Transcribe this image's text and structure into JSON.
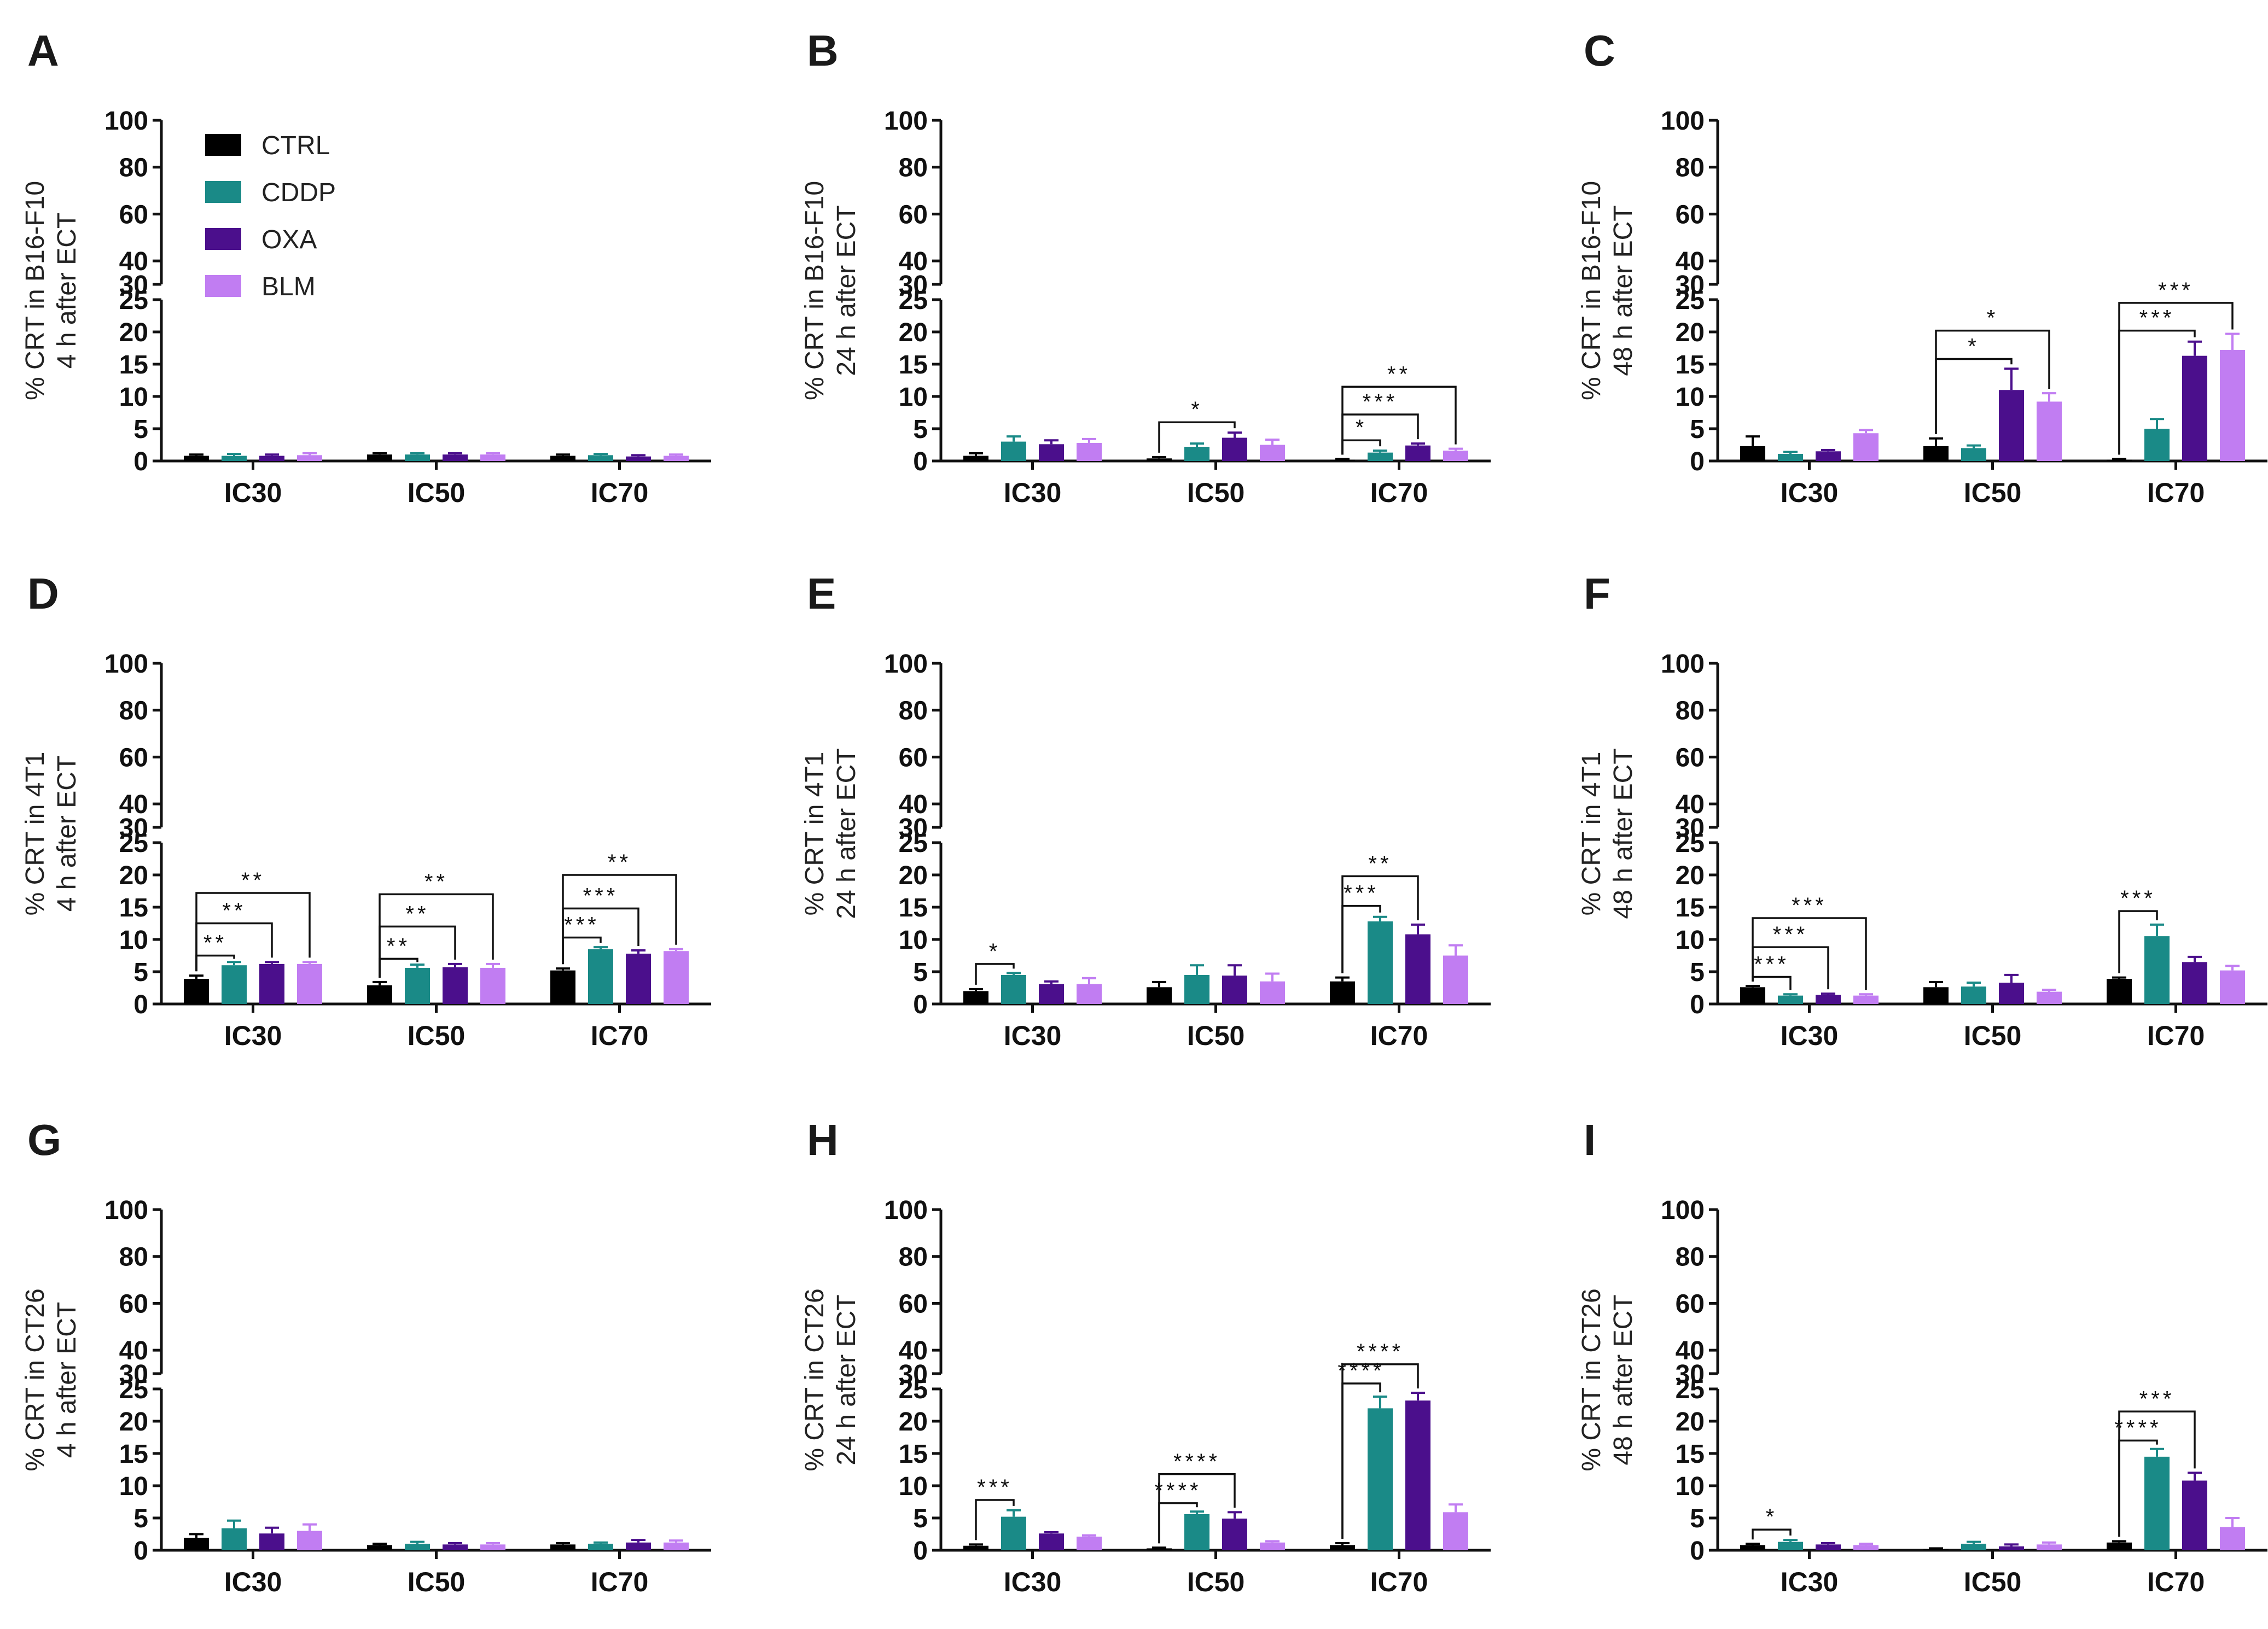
{
  "legend": [
    {
      "name": "CTRL",
      "color": "#000000"
    },
    {
      "name": "CDDP",
      "color": "#1a8a87"
    },
    {
      "name": "OXA",
      "color": "#4b0f8c"
    },
    {
      "name": "BLM",
      "color": "#c17df2"
    }
  ],
  "axis": {
    "upper_ticks": [
      "100",
      "80",
      "60",
      "40",
      "30"
    ],
    "lower_ticks": [
      "25",
      "20",
      "15",
      "10",
      "5",
      "0"
    ],
    "ylim_lower": [
      0,
      25
    ],
    "ylim_upper": [
      30,
      100
    ]
  },
  "chart_data": [
    {
      "panel": "A",
      "type": "bar",
      "ylabel": [
        "% CRT in B16-F10",
        "4 h after ECT"
      ],
      "categories": [
        "IC30",
        "IC50",
        "IC70"
      ],
      "series": [
        {
          "name": "CTRL",
          "values": [
            0.8,
            1.0,
            0.8
          ],
          "errors": [
            0.2,
            0.2,
            0.2
          ]
        },
        {
          "name": "CDDP",
          "values": [
            0.8,
            1.0,
            0.9
          ],
          "errors": [
            0.3,
            0.2,
            0.2
          ]
        },
        {
          "name": "OXA",
          "values": [
            0.8,
            1.0,
            0.7
          ],
          "errors": [
            0.2,
            0.2,
            0.2
          ]
        },
        {
          "name": "BLM",
          "values": [
            0.9,
            1.0,
            0.8
          ],
          "errors": [
            0.3,
            0.2,
            0.2
          ]
        }
      ],
      "annotations": [],
      "legend": true
    },
    {
      "panel": "B",
      "type": "bar",
      "ylabel": [
        "% CRT in B16-F10",
        "24 h after ECT"
      ],
      "categories": [
        "IC30",
        "IC50",
        "IC70"
      ],
      "series": [
        {
          "name": "CTRL",
          "values": [
            0.8,
            0.4,
            0.2
          ],
          "errors": [
            0.4,
            0.2,
            0.1
          ]
        },
        {
          "name": "CDDP",
          "values": [
            3.0,
            2.2,
            1.3
          ],
          "errors": [
            0.8,
            0.5,
            0.3
          ]
        },
        {
          "name": "OXA",
          "values": [
            2.6,
            3.6,
            2.4
          ],
          "errors": [
            0.6,
            0.8,
            0.3
          ]
        },
        {
          "name": "BLM",
          "values": [
            2.8,
            2.5,
            1.6
          ],
          "errors": [
            0.6,
            0.8,
            0.3
          ]
        }
      ],
      "annotations": [
        {
          "cat": 1,
          "from": 0,
          "to": 2,
          "y": 6.0,
          "text": "*"
        },
        {
          "cat": 2,
          "from": 0,
          "to": 1,
          "y": 3.2,
          "text": "*"
        },
        {
          "cat": 2,
          "from": 0,
          "to": 2,
          "y": 7.2,
          "text": "***"
        },
        {
          "cat": 2,
          "from": 0,
          "to": 3,
          "y": 11.5,
          "text": "**"
        }
      ]
    },
    {
      "panel": "C",
      "type": "bar",
      "ylabel": [
        "% CRT in B16-F10",
        "48 h after ECT"
      ],
      "categories": [
        "IC30",
        "IC50",
        "IC70"
      ],
      "series": [
        {
          "name": "CTRL",
          "values": [
            2.3,
            2.3,
            0.2
          ],
          "errors": [
            1.5,
            1.2,
            0.1
          ]
        },
        {
          "name": "CDDP",
          "values": [
            1.1,
            2.0,
            5.0
          ],
          "errors": [
            0.3,
            0.4,
            1.5
          ]
        },
        {
          "name": "OXA",
          "values": [
            1.5,
            11.0,
            16.3
          ],
          "errors": [
            0.2,
            3.3,
            2.2
          ]
        },
        {
          "name": "BLM",
          "values": [
            4.3,
            9.2,
            17.2
          ],
          "errors": [
            0.5,
            1.3,
            2.5
          ]
        }
      ],
      "annotations": [
        {
          "cat": 1,
          "from": 0,
          "to": 2,
          "y": 15.8,
          "text": "*"
        },
        {
          "cat": 1,
          "from": 0,
          "to": 3,
          "y": 20.2,
          "text": "*"
        },
        {
          "cat": 2,
          "from": 0,
          "to": 2,
          "y": 20.2,
          "text": "***"
        },
        {
          "cat": 2,
          "from": 0,
          "to": 3,
          "y": 24.5,
          "text": "***"
        }
      ]
    },
    {
      "panel": "D",
      "type": "bar",
      "ylabel": [
        "% CRT in 4T1",
        "4 h after ECT"
      ],
      "categories": [
        "IC30",
        "IC50",
        "IC70"
      ],
      "series": [
        {
          "name": "CTRL",
          "values": [
            3.9,
            2.9,
            5.2
          ],
          "errors": [
            0.5,
            0.5,
            0.3
          ]
        },
        {
          "name": "CDDP",
          "values": [
            6.0,
            5.6,
            8.5
          ],
          "errors": [
            0.5,
            0.5,
            0.3
          ]
        },
        {
          "name": "OXA",
          "values": [
            6.2,
            5.7,
            7.8
          ],
          "errors": [
            0.3,
            0.5,
            0.5
          ]
        },
        {
          "name": "BLM",
          "values": [
            6.2,
            5.6,
            8.2
          ],
          "errors": [
            0.3,
            0.6,
            0.3
          ]
        }
      ],
      "annotations": [
        {
          "cat": 0,
          "from": 0,
          "to": 1,
          "y": 7.5,
          "text": "**"
        },
        {
          "cat": 0,
          "from": 0,
          "to": 2,
          "y": 12.5,
          "text": "**"
        },
        {
          "cat": 0,
          "from": 0,
          "to": 3,
          "y": 17.2,
          "text": "**"
        },
        {
          "cat": 1,
          "from": 0,
          "to": 1,
          "y": 7.0,
          "text": "**"
        },
        {
          "cat": 1,
          "from": 0,
          "to": 2,
          "y": 12.0,
          "text": "**"
        },
        {
          "cat": 1,
          "from": 0,
          "to": 3,
          "y": 17.0,
          "text": "**"
        },
        {
          "cat": 2,
          "from": 0,
          "to": 1,
          "y": 10.3,
          "text": "***"
        },
        {
          "cat": 2,
          "from": 0,
          "to": 2,
          "y": 14.8,
          "text": "***"
        },
        {
          "cat": 2,
          "from": 0,
          "to": 3,
          "y": 20.0,
          "text": "**"
        }
      ]
    },
    {
      "panel": "E",
      "type": "bar",
      "ylabel": [
        "% CRT in 4T1",
        "24 h after ECT"
      ],
      "categories": [
        "IC30",
        "IC50",
        "IC70"
      ],
      "series": [
        {
          "name": "CTRL",
          "values": [
            2.0,
            2.6,
            3.5
          ],
          "errors": [
            0.3,
            0.8,
            0.6
          ]
        },
        {
          "name": "CDDP",
          "values": [
            4.5,
            4.5,
            12.8
          ],
          "errors": [
            0.3,
            1.5,
            0.7
          ]
        },
        {
          "name": "OXA",
          "values": [
            3.1,
            4.4,
            10.8
          ],
          "errors": [
            0.4,
            1.6,
            1.5
          ]
        },
        {
          "name": "BLM",
          "values": [
            3.1,
            3.5,
            7.5
          ],
          "errors": [
            0.9,
            1.2,
            1.6
          ]
        }
      ],
      "annotations": [
        {
          "cat": 0,
          "from": 0,
          "to": 1,
          "y": 6.2,
          "text": "*"
        },
        {
          "cat": 2,
          "from": 0,
          "to": 1,
          "y": 15.2,
          "text": "***"
        },
        {
          "cat": 2,
          "from": 0,
          "to": 2,
          "y": 19.8,
          "text": "**"
        }
      ]
    },
    {
      "panel": "F",
      "type": "bar",
      "ylabel": [
        "% CRT in 4T1",
        "48 h after ECT"
      ],
      "categories": [
        "IC30",
        "IC50",
        "IC70"
      ],
      "series": [
        {
          "name": "CTRL",
          "values": [
            2.6,
            2.6,
            3.9
          ],
          "errors": [
            0.2,
            0.8,
            0.2
          ]
        },
        {
          "name": "CDDP",
          "values": [
            1.3,
            2.7,
            10.5
          ],
          "errors": [
            0.2,
            0.6,
            1.8
          ]
        },
        {
          "name": "OXA",
          "values": [
            1.4,
            3.3,
            6.5
          ],
          "errors": [
            0.2,
            1.2,
            0.8
          ]
        },
        {
          "name": "BLM",
          "values": [
            1.3,
            1.9,
            5.2
          ],
          "errors": [
            0.2,
            0.3,
            0.7
          ]
        }
      ],
      "annotations": [
        {
          "cat": 0,
          "from": 0,
          "to": 1,
          "y": 4.2,
          "text": "***"
        },
        {
          "cat": 0,
          "from": 0,
          "to": 2,
          "y": 8.8,
          "text": "***"
        },
        {
          "cat": 0,
          "from": 0,
          "to": 3,
          "y": 13.3,
          "text": "***"
        },
        {
          "cat": 2,
          "from": 0,
          "to": 1,
          "y": 14.4,
          "text": "***"
        }
      ]
    },
    {
      "panel": "G",
      "type": "bar",
      "ylabel": [
        "% CRT in CT26",
        "4 h after ECT"
      ],
      "categories": [
        "IC30",
        "IC50",
        "IC70"
      ],
      "series": [
        {
          "name": "CTRL",
          "values": [
            1.9,
            0.8,
            0.9
          ],
          "errors": [
            0.6,
            0.2,
            0.2
          ]
        },
        {
          "name": "CDDP",
          "values": [
            3.4,
            1.0,
            1.0
          ],
          "errors": [
            1.2,
            0.3,
            0.2
          ]
        },
        {
          "name": "OXA",
          "values": [
            2.6,
            0.9,
            1.2
          ],
          "errors": [
            0.9,
            0.2,
            0.4
          ]
        },
        {
          "name": "BLM",
          "values": [
            3.0,
            0.9,
            1.2
          ],
          "errors": [
            1.0,
            0.2,
            0.3
          ]
        }
      ],
      "annotations": []
    },
    {
      "panel": "H",
      "type": "bar",
      "ylabel": [
        "% CRT in CT26",
        "24 h after ECT"
      ],
      "categories": [
        "IC30",
        "IC50",
        "IC70"
      ],
      "series": [
        {
          "name": "CTRL",
          "values": [
            0.7,
            0.3,
            0.8
          ],
          "errors": [
            0.2,
            0.1,
            0.3
          ]
        },
        {
          "name": "CDDP",
          "values": [
            5.2,
            5.6,
            22.0
          ],
          "errors": [
            1.0,
            0.4,
            1.8
          ]
        },
        {
          "name": "OXA",
          "values": [
            2.6,
            4.9,
            23.2
          ],
          "errors": [
            0.2,
            1.0,
            1.2
          ]
        },
        {
          "name": "BLM",
          "values": [
            2.1,
            1.2,
            5.9
          ],
          "errors": [
            0.2,
            0.2,
            1.2
          ]
        }
      ],
      "annotations": [
        {
          "cat": 0,
          "from": 0,
          "to": 1,
          "y": 7.8,
          "text": "***"
        },
        {
          "cat": 1,
          "from": 0,
          "to": 1,
          "y": 7.3,
          "text": "****"
        },
        {
          "cat": 1,
          "from": 0,
          "to": 2,
          "y": 11.8,
          "text": "****"
        },
        {
          "cat": 2,
          "from": 0,
          "to": 1,
          "y": 25.8,
          "text": "****"
        },
        {
          "cat": 2,
          "from": 0,
          "to": 2,
          "y": 34.0,
          "text": "****"
        }
      ]
    },
    {
      "panel": "I",
      "type": "bar",
      "ylabel": [
        "% CRT in CT26",
        "48 h after ECT"
      ],
      "categories": [
        "IC30",
        "IC50",
        "IC70"
      ],
      "series": [
        {
          "name": "CTRL",
          "values": [
            0.8,
            0.2,
            1.2
          ],
          "errors": [
            0.2,
            0.1,
            0.2
          ]
        },
        {
          "name": "CDDP",
          "values": [
            1.3,
            1.0,
            14.5
          ],
          "errors": [
            0.3,
            0.3,
            1.2
          ]
        },
        {
          "name": "OXA",
          "values": [
            0.9,
            0.6,
            10.8
          ],
          "errors": [
            0.2,
            0.3,
            1.2
          ]
        },
        {
          "name": "BLM",
          "values": [
            0.8,
            0.9,
            3.6
          ],
          "errors": [
            0.2,
            0.3,
            1.4
          ]
        }
      ],
      "annotations": [
        {
          "cat": 0,
          "from": 0,
          "to": 1,
          "y": 3.2,
          "text": "*"
        },
        {
          "cat": 2,
          "from": 0,
          "to": 1,
          "y": 17.0,
          "text": "****"
        },
        {
          "cat": 2,
          "from": 0,
          "to": 2,
          "y": 21.5,
          "text": "***"
        }
      ]
    }
  ]
}
